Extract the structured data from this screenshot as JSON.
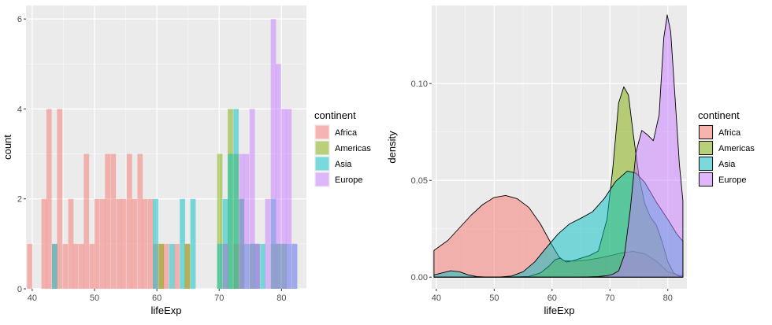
{
  "chart_data": [
    {
      "type": "bar",
      "subtype": "overlapping-histogram",
      "xlabel": "lifeExp",
      "ylabel": "count",
      "xlim": [
        39,
        84
      ],
      "ylim": [
        0,
        6.3
      ],
      "xticks": [
        40,
        50,
        60,
        70,
        80
      ],
      "yticks": [
        0,
        2,
        4,
        6
      ],
      "bin_width": 0.85,
      "grid": true,
      "legend": {
        "title": "continent",
        "position": "right"
      },
      "series": [
        {
          "name": "Africa",
          "color": "#F8766D",
          "bins": [
            {
              "x": 39.6,
              "count": 1
            },
            {
              "x": 41.9,
              "count": 2
            },
            {
              "x": 42.7,
              "count": 4
            },
            {
              "x": 43.6,
              "count": 1
            },
            {
              "x": 44.4,
              "count": 4
            },
            {
              "x": 45.3,
              "count": 1
            },
            {
              "x": 46.2,
              "count": 2
            },
            {
              "x": 47.0,
              "count": 1
            },
            {
              "x": 47.9,
              "count": 1
            },
            {
              "x": 48.7,
              "count": 3
            },
            {
              "x": 49.6,
              "count": 1
            },
            {
              "x": 50.4,
              "count": 2
            },
            {
              "x": 51.3,
              "count": 2
            },
            {
              "x": 52.1,
              "count": 3
            },
            {
              "x": 53.0,
              "count": 3
            },
            {
              "x": 53.9,
              "count": 2
            },
            {
              "x": 54.7,
              "count": 2
            },
            {
              "x": 55.6,
              "count": 3
            },
            {
              "x": 56.4,
              "count": 2
            },
            {
              "x": 57.3,
              "count": 3
            },
            {
              "x": 58.1,
              "count": 2
            },
            {
              "x": 59.0,
              "count": 2
            },
            {
              "x": 59.8,
              "count": 1
            },
            {
              "x": 60.7,
              "count": 1
            },
            {
              "x": 61.5,
              "count": 1
            },
            {
              "x": 63.2,
              "count": 1
            },
            {
              "x": 64.9,
              "count": 1
            },
            {
              "x": 72.7,
              "count": 1
            },
            {
              "x": 73.6,
              "count": 1
            },
            {
              "x": 76.1,
              "count": 1
            }
          ]
        },
        {
          "name": "Americas",
          "color": "#7CAE00",
          "bins": [
            {
              "x": 60.7,
              "count": 1
            },
            {
              "x": 64.9,
              "count": 1
            },
            {
              "x": 70.1,
              "count": 3
            },
            {
              "x": 71.0,
              "count": 1
            },
            {
              "x": 71.8,
              "count": 4
            },
            {
              "x": 72.7,
              "count": 3
            },
            {
              "x": 73.6,
              "count": 2
            },
            {
              "x": 75.3,
              "count": 1
            },
            {
              "x": 78.7,
              "count": 1
            },
            {
              "x": 79.5,
              "count": 1
            },
            {
              "x": 80.4,
              "count": 1
            }
          ]
        },
        {
          "name": "Asia",
          "color": "#00BFC4",
          "bins": [
            {
              "x": 43.6,
              "count": 1
            },
            {
              "x": 59.8,
              "count": 2
            },
            {
              "x": 62.4,
              "count": 1
            },
            {
              "x": 64.1,
              "count": 2
            },
            {
              "x": 65.8,
              "count": 2
            },
            {
              "x": 70.1,
              "count": 1
            },
            {
              "x": 71.0,
              "count": 2
            },
            {
              "x": 71.8,
              "count": 3
            },
            {
              "x": 72.7,
              "count": 4
            },
            {
              "x": 73.6,
              "count": 2
            },
            {
              "x": 74.4,
              "count": 1
            },
            {
              "x": 75.3,
              "count": 1
            },
            {
              "x": 76.1,
              "count": 1
            },
            {
              "x": 77.0,
              "count": 1
            },
            {
              "x": 78.7,
              "count": 2
            },
            {
              "x": 79.5,
              "count": 1
            },
            {
              "x": 80.4,
              "count": 1
            },
            {
              "x": 81.2,
              "count": 1
            },
            {
              "x": 82.1,
              "count": 1
            }
          ]
        },
        {
          "name": "Europe",
          "color": "#C77CFF",
          "bins": [
            {
              "x": 71.0,
              "count": 1
            },
            {
              "x": 73.6,
              "count": 3
            },
            {
              "x": 74.4,
              "count": 3
            },
            {
              "x": 75.3,
              "count": 4
            },
            {
              "x": 76.1,
              "count": 1
            },
            {
              "x": 77.8,
              "count": 2
            },
            {
              "x": 78.7,
              "count": 6
            },
            {
              "x": 79.5,
              "count": 5
            },
            {
              "x": 80.4,
              "count": 4
            },
            {
              "x": 81.2,
              "count": 4
            },
            {
              "x": 82.1,
              "count": 1
            }
          ]
        }
      ]
    },
    {
      "type": "area",
      "subtype": "density",
      "xlabel": "lifeExp",
      "ylabel": "density",
      "xlim": [
        39.2,
        83.3
      ],
      "ylim": [
        -0.006,
        0.1403
      ],
      "xticks": [
        40,
        50,
        60,
        70,
        80
      ],
      "yticks": [
        0.0,
        0.05,
        0.1
      ],
      "ytick_labels": [
        "0.00",
        "0.05",
        "0.10"
      ],
      "grid": true,
      "legend": {
        "title": "continent",
        "position": "right"
      },
      "series": [
        {
          "name": "Africa",
          "color": "#F8766D",
          "points": [
            [
              39.6,
              0.0138
            ],
            [
              42,
              0.019
            ],
            [
              44,
              0.0255
            ],
            [
              46,
              0.032
            ],
            [
              48,
              0.0375
            ],
            [
              50,
              0.0412
            ],
            [
              52,
              0.0422
            ],
            [
              54,
              0.0405
            ],
            [
              56,
              0.036
            ],
            [
              58,
              0.0275
            ],
            [
              60,
              0.0165
            ],
            [
              61.2,
              0.0105
            ],
            [
              62,
              0.0085
            ],
            [
              64,
              0.0083
            ],
            [
              66,
              0.0088
            ],
            [
              68,
              0.0098
            ],
            [
              70,
              0.0111
            ],
            [
              72,
              0.0125
            ],
            [
              74,
              0.0133
            ],
            [
              76,
              0.0121
            ],
            [
              78,
              0.0083
            ],
            [
              80,
              0.0028
            ],
            [
              82,
              0.0009
            ],
            [
              82.6,
              0.0008
            ]
          ]
        },
        {
          "name": "Americas",
          "color": "#7CAE00",
          "points": [
            [
              39.6,
              0.0
            ],
            [
              52,
              0.0
            ],
            [
              56,
              0.0004
            ],
            [
              58,
              0.0022
            ],
            [
              59.5,
              0.0058
            ],
            [
              60.5,
              0.009
            ],
            [
              61.4,
              0.0098
            ],
            [
              62.5,
              0.0078
            ],
            [
              63.5,
              0.0084
            ],
            [
              65,
              0.0098
            ],
            [
              66.5,
              0.0112
            ],
            [
              68,
              0.0135
            ],
            [
              69.5,
              0.03
            ],
            [
              70.5,
              0.0565
            ],
            [
              71.5,
              0.09
            ],
            [
              72.4,
              0.0983
            ],
            [
              73.2,
              0.094
            ],
            [
              74,
              0.0745
            ],
            [
              75,
              0.0525
            ],
            [
              76,
              0.038
            ],
            [
              77,
              0.031
            ],
            [
              78,
              0.027
            ],
            [
              79,
              0.0185
            ],
            [
              80,
              0.008
            ],
            [
              81,
              0.0022
            ],
            [
              82,
              0.0004
            ],
            [
              82.6,
              0.0
            ]
          ]
        },
        {
          "name": "Asia",
          "color": "#00BFC4",
          "points": [
            [
              39.6,
              0.0012
            ],
            [
              41,
              0.0022
            ],
            [
              42.5,
              0.0033
            ],
            [
              44,
              0.0028
            ],
            [
              45.5,
              0.0012
            ],
            [
              47,
              0.0003
            ],
            [
              49,
              0.0
            ],
            [
              51,
              0.0001
            ],
            [
              53,
              0.0006
            ],
            [
              55,
              0.0028
            ],
            [
              57,
              0.0079
            ],
            [
              59,
              0.0152
            ],
            [
              61,
              0.0222
            ],
            [
              63,
              0.0275
            ],
            [
              65,
              0.0305
            ],
            [
              67,
              0.0338
            ],
            [
              69,
              0.0405
            ],
            [
              71,
              0.0495
            ],
            [
              73,
              0.0548
            ],
            [
              74.5,
              0.0538
            ],
            [
              76,
              0.049
            ],
            [
              78,
              0.0388
            ],
            [
              80,
              0.0298
            ],
            [
              81.5,
              0.0225
            ],
            [
              82.6,
              0.0185
            ]
          ]
        },
        {
          "name": "Europe",
          "color": "#C77CFF",
          "points": [
            [
              39.6,
              0.0
            ],
            [
              64,
              0.0
            ],
            [
              66,
              0.0001
            ],
            [
              68,
              0.0003
            ],
            [
              69.5,
              0.0008
            ],
            [
              70.5,
              0.0015
            ],
            [
              71.5,
              0.0032
            ],
            [
              72.5,
              0.0115
            ],
            [
              73.5,
              0.0345
            ],
            [
              74.5,
              0.0645
            ],
            [
              75.5,
              0.0758
            ],
            [
              76.5,
              0.0735
            ],
            [
              77.5,
              0.0705
            ],
            [
              78.5,
              0.0838
            ],
            [
              79.3,
              0.1235
            ],
            [
              79.9,
              0.1355
            ],
            [
              80.5,
              0.1268
            ],
            [
              81.3,
              0.0905
            ],
            [
              82,
              0.0585
            ],
            [
              82.6,
              0.0395
            ]
          ]
        }
      ]
    }
  ]
}
